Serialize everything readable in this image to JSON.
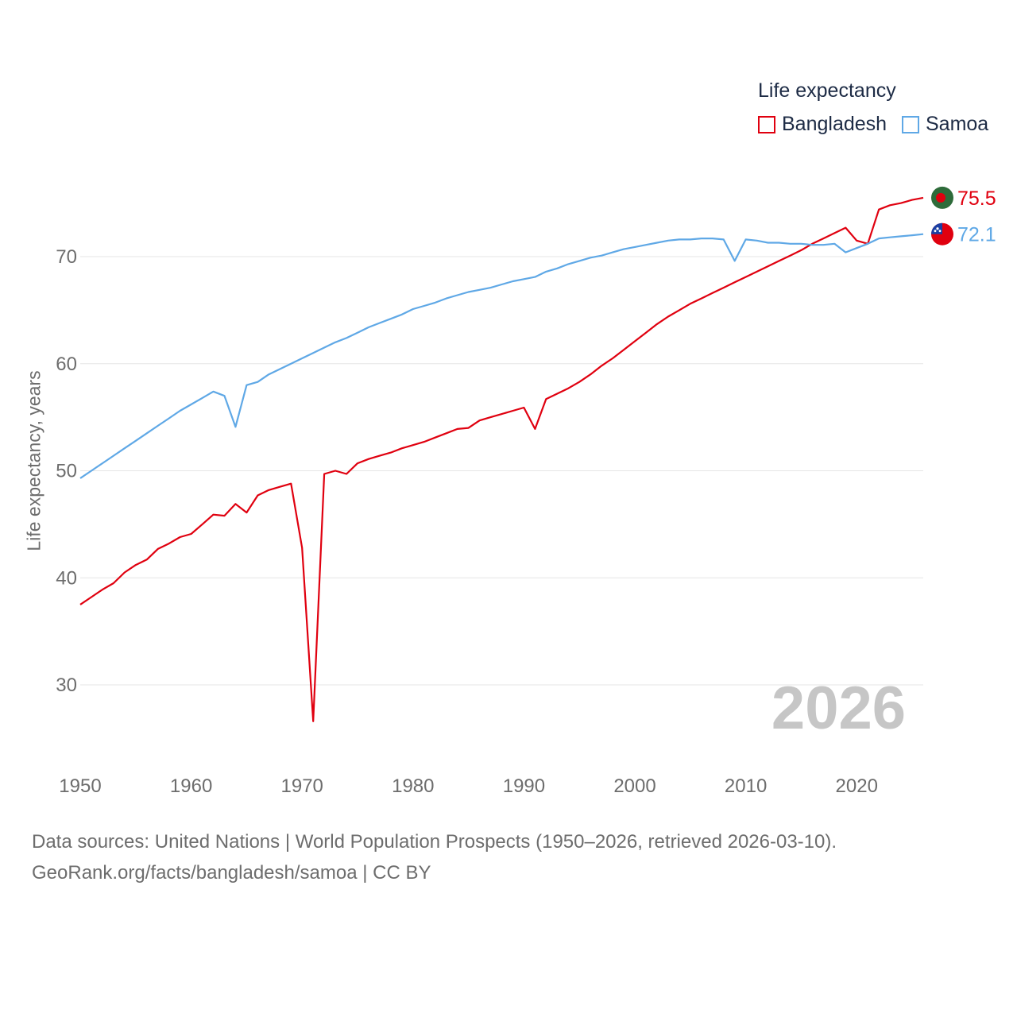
{
  "chart_data": {
    "type": "line",
    "title": "Life expectancy",
    "xlabel": "",
    "ylabel": "Life expectancy, years",
    "xlim": [
      1950,
      2026
    ],
    "ylim": [
      24,
      78
    ],
    "yticks": [
      30,
      40,
      50,
      60,
      70
    ],
    "xticks": [
      1950,
      1960,
      1970,
      1980,
      1990,
      2000,
      2010,
      2020
    ],
    "current_year": "2026",
    "x": [
      1950,
      1951,
      1952,
      1953,
      1954,
      1955,
      1956,
      1957,
      1958,
      1959,
      1960,
      1961,
      1962,
      1963,
      1964,
      1965,
      1966,
      1967,
      1968,
      1969,
      1970,
      1971,
      1972,
      1973,
      1974,
      1975,
      1976,
      1977,
      1978,
      1979,
      1980,
      1981,
      1982,
      1983,
      1984,
      1985,
      1986,
      1987,
      1988,
      1989,
      1990,
      1991,
      1992,
      1993,
      1994,
      1995,
      1996,
      1997,
      1998,
      1999,
      2000,
      2001,
      2002,
      2003,
      2004,
      2005,
      2006,
      2007,
      2008,
      2009,
      2010,
      2011,
      2012,
      2013,
      2014,
      2015,
      2016,
      2017,
      2018,
      2019,
      2020,
      2021,
      2022,
      2023,
      2024,
      2025,
      2026
    ],
    "series": [
      {
        "name": "Bangladesh",
        "color": "#e0000f",
        "end_label": "75.5",
        "flag": "bangladesh-flag-icon",
        "values": [
          37.5,
          38.2,
          38.9,
          39.5,
          40.5,
          41.2,
          41.7,
          42.7,
          43.2,
          43.8,
          44.1,
          45.0,
          45.9,
          45.8,
          46.9,
          46.1,
          47.7,
          48.2,
          48.5,
          48.8,
          42.8,
          26.6,
          49.7,
          50.0,
          49.7,
          50.7,
          51.1,
          51.4,
          51.7,
          52.1,
          52.4,
          52.7,
          53.1,
          53.5,
          53.9,
          54.0,
          54.7,
          55.0,
          55.3,
          55.6,
          55.9,
          53.9,
          56.7,
          57.2,
          57.7,
          58.3,
          59.0,
          59.8,
          60.5,
          61.3,
          62.1,
          62.9,
          63.7,
          64.4,
          65.0,
          65.6,
          66.1,
          66.6,
          67.1,
          67.6,
          68.1,
          68.6,
          69.1,
          69.6,
          70.1,
          70.6,
          71.2,
          71.7,
          72.2,
          72.7,
          71.5,
          71.2,
          74.4,
          74.8,
          75.0,
          75.3,
          75.5
        ]
      },
      {
        "name": "Samoa",
        "color": "#5fa8e6",
        "end_label": "72.1",
        "flag": "samoa-flag-icon",
        "values": [
          49.3,
          50.0,
          50.7,
          51.4,
          52.1,
          52.8,
          53.5,
          54.2,
          54.9,
          55.6,
          56.2,
          56.8,
          57.4,
          57.0,
          54.1,
          58.0,
          58.3,
          59.0,
          59.5,
          60.0,
          60.5,
          61.0,
          61.5,
          62.0,
          62.4,
          62.9,
          63.4,
          63.8,
          64.2,
          64.6,
          65.1,
          65.4,
          65.7,
          66.1,
          66.4,
          66.7,
          66.9,
          67.1,
          67.4,
          67.7,
          67.9,
          68.1,
          68.6,
          68.9,
          69.3,
          69.6,
          69.9,
          70.1,
          70.4,
          70.7,
          70.9,
          71.1,
          71.3,
          71.5,
          71.6,
          71.6,
          71.7,
          71.7,
          71.6,
          69.6,
          71.6,
          71.5,
          71.3,
          71.3,
          71.2,
          71.2,
          71.1,
          71.1,
          71.2,
          70.4,
          70.8,
          71.2,
          71.7,
          71.8,
          71.9,
          72.0,
          72.1
        ]
      }
    ]
  },
  "legend": {
    "title": "Life expectancy",
    "items": [
      {
        "label": "Bangladesh",
        "color": "#e0000f"
      },
      {
        "label": "Samoa",
        "color": "#5fa8e6"
      }
    ]
  },
  "footer": {
    "source_line": "Data sources: United Nations | World Population Prospects (1950–2026, retrieved 2026-03-10).",
    "url_line": "GeoRank.org/facts/bangladesh/samoa | CC BY"
  }
}
